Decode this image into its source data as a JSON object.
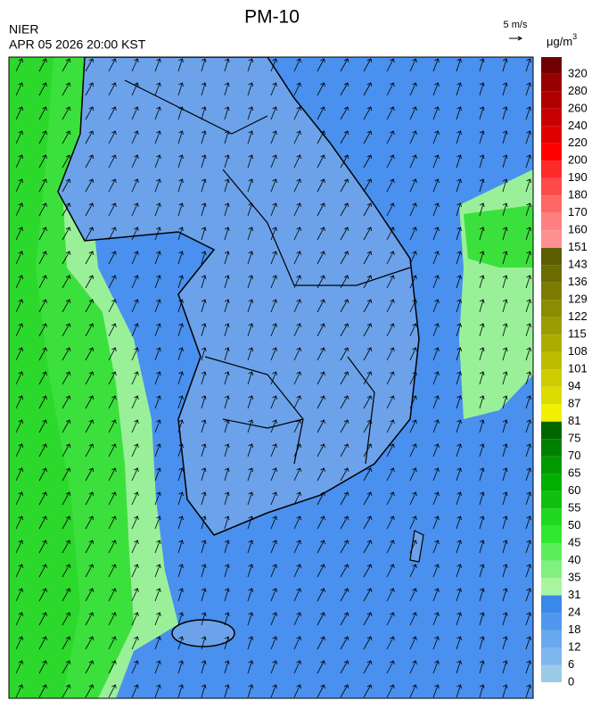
{
  "header": {
    "title": "PM-10",
    "agency": "NIER",
    "datetime": "APR 05 2026 20:00 KST"
  },
  "wind_legend": {
    "label": "5 m/s"
  },
  "colorbar": {
    "unit": "μg/m",
    "unit_sup": "3",
    "levels": [
      0,
      6,
      12,
      18,
      24,
      31,
      35,
      40,
      45,
      50,
      55,
      60,
      65,
      70,
      75,
      81,
      87,
      94,
      101,
      108,
      115,
      122,
      129,
      136,
      143,
      151,
      160,
      170,
      180,
      190,
      200,
      220,
      240,
      260,
      280,
      320
    ],
    "colors": [
      "#9ccbe8",
      "#7db7ee",
      "#6aa8ee",
      "#4f98ee",
      "#3a88ea",
      "#a8f5a0",
      "#80f080",
      "#5aee5a",
      "#30e830",
      "#20d820",
      "#10c010",
      "#00b000",
      "#009a00",
      "#008000",
      "#006600",
      "#f0f000",
      "#dcdc00",
      "#cccc00",
      "#bcbc00",
      "#acac00",
      "#9c9c00",
      "#8c8c00",
      "#7c7c00",
      "#6c6c00",
      "#5c5c00",
      "#ff9090",
      "#ff8080",
      "#ff6666",
      "#ff4a4a",
      "#ff2a2a",
      "#ff0000",
      "#e00000",
      "#c80000",
      "#b00000",
      "#980000",
      "#700000"
    ]
  }
}
